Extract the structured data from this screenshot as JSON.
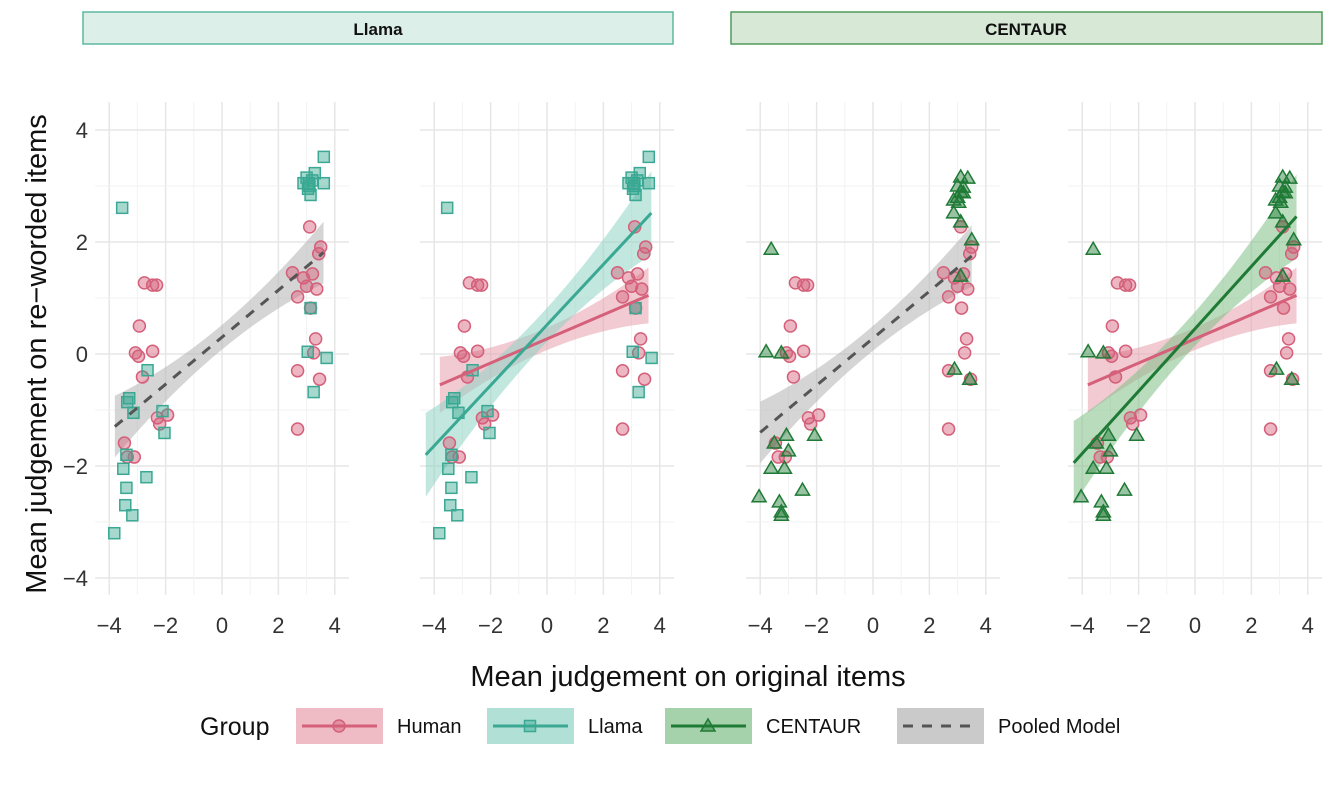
{
  "chart_data": {
    "type": "scatter",
    "xlabel": "Mean judgement on original items",
    "ylabel": "Mean judgement on re−worded items",
    "xlim": [
      -4.5,
      4.5
    ],
    "ylim": [
      -4.3,
      4.5
    ],
    "x_ticks": [
      "−4",
      "−2",
      "0",
      "2",
      "4"
    ],
    "y_ticks": [
      "−4",
      "−2",
      "0",
      "2",
      "4"
    ],
    "grid": true,
    "legend": {
      "title": "Group",
      "position": "bottom",
      "entries": [
        {
          "key": "human",
          "label": "Human",
          "color": "#d4607a",
          "marker": "circle",
          "line": "solid"
        },
        {
          "key": "llama",
          "label": "Llama",
          "color": "#3aa893",
          "marker": "square",
          "line": "solid"
        },
        {
          "key": "centaur",
          "label": "CENTAUR",
          "color": "#1f7a35",
          "marker": "triangle",
          "line": "solid"
        },
        {
          "key": "pooled",
          "label": "Pooled Model",
          "color": "#555555",
          "marker": "none",
          "line": "dashed"
        }
      ]
    },
    "strips": [
      {
        "label": "Llama",
        "fill": "#dcefe9",
        "border": "#5cb89f"
      },
      {
        "label": "CENTAUR",
        "fill": "#d7e8d7",
        "border": "#4f9a5b"
      }
    ],
    "series_points": {
      "human": [
        [
          -2.75,
          1.27
        ],
        [
          -2.46,
          1.23
        ],
        [
          -2.32,
          1.23
        ],
        [
          -2.93,
          0.5
        ],
        [
          -3.07,
          0.02
        ],
        [
          -2.96,
          -0.04
        ],
        [
          -2.46,
          0.05
        ],
        [
          -2.82,
          -0.41
        ],
        [
          -2.29,
          -1.14
        ],
        [
          -2.21,
          -1.25
        ],
        [
          -1.93,
          -1.09
        ],
        [
          -3.46,
          -1.59
        ],
        [
          -3.36,
          -1.84
        ],
        [
          -3.11,
          -1.84
        ],
        [
          3.11,
          2.27
        ],
        [
          3.5,
          1.91
        ],
        [
          3.43,
          1.79
        ],
        [
          2.5,
          1.45
        ],
        [
          3.21,
          1.43
        ],
        [
          2.89,
          1.36
        ],
        [
          3.0,
          1.21
        ],
        [
          3.36,
          1.16
        ],
        [
          2.68,
          1.02
        ],
        [
          3.14,
          0.82
        ],
        [
          3.32,
          0.27
        ],
        [
          3.25,
          0.02
        ],
        [
          2.68,
          -0.3
        ],
        [
          3.46,
          -0.45
        ],
        [
          2.68,
          -1.34
        ]
      ],
      "llama": [
        [
          3.61,
          3.52
        ],
        [
          3.29,
          3.23
        ],
        [
          2.89,
          3.05
        ],
        [
          3.08,
          3.05
        ],
        [
          3.61,
          3.05
        ],
        [
          3.14,
          2.84
        ],
        [
          3.0,
          3.15
        ],
        [
          3.1,
          3.0
        ],
        [
          3.2,
          3.1
        ],
        [
          3.05,
          2.95
        ],
        [
          -3.54,
          2.61
        ],
        [
          3.14,
          0.82
        ],
        [
          3.04,
          0.04
        ],
        [
          3.71,
          -0.07
        ],
        [
          3.25,
          -0.68
        ],
        [
          -2.64,
          -0.29
        ],
        [
          -3.29,
          -0.79
        ],
        [
          -3.36,
          -0.86
        ],
        [
          -3.14,
          -1.05
        ],
        [
          -2.11,
          -1.02
        ],
        [
          -2.04,
          -1.41
        ],
        [
          -3.39,
          -1.8
        ],
        [
          -3.5,
          -2.05
        ],
        [
          -2.68,
          -2.2
        ],
        [
          -3.39,
          -2.39
        ],
        [
          -3.43,
          -2.7
        ],
        [
          -3.18,
          -2.88
        ],
        [
          -3.82,
          -3.2
        ]
      ],
      "centaur": [
        [
          3.11,
          3.16
        ],
        [
          3.36,
          3.14
        ],
        [
          3.0,
          3.0
        ],
        [
          3.2,
          2.98
        ],
        [
          3.11,
          2.89
        ],
        [
          3.0,
          2.8
        ],
        [
          3.2,
          2.88
        ],
        [
          2.86,
          2.75
        ],
        [
          3.04,
          2.71
        ],
        [
          2.86,
          2.52
        ],
        [
          3.11,
          2.36
        ],
        [
          3.5,
          2.04
        ],
        [
          -3.61,
          1.87
        ],
        [
          3.11,
          1.39
        ],
        [
          -3.79,
          0.04
        ],
        [
          -3.25,
          0.02
        ],
        [
          2.89,
          -0.27
        ],
        [
          3.43,
          -0.45
        ],
        [
          -3.07,
          -1.45
        ],
        [
          -2.07,
          -1.45
        ],
        [
          -3.5,
          -1.59
        ],
        [
          -3.0,
          -1.73
        ],
        [
          -3.61,
          -2.04
        ],
        [
          -3.14,
          -2.04
        ],
        [
          -2.5,
          -2.43
        ],
        [
          -4.04,
          -2.55
        ],
        [
          -3.32,
          -2.64
        ],
        [
          -3.25,
          -2.82
        ],
        [
          -3.25,
          -2.88
        ]
      ]
    },
    "panels": [
      {
        "strip": 0,
        "points": [
          "human",
          "llama"
        ],
        "fits": [
          {
            "key": "pooled",
            "slope": 0.42,
            "intercept": 0.3,
            "x_range": [
              -3.8,
              3.6
            ],
            "ci_center": 0.22,
            "ci_edge": 0.55
          }
        ]
      },
      {
        "strip": 0,
        "points": [
          "human",
          "llama"
        ],
        "fits": [
          {
            "key": "human",
            "slope": 0.216,
            "intercept": 0.27,
            "x_range": [
              -3.8,
              3.6
            ],
            "ci_center": 0.2,
            "ci_edge": 0.5
          },
          {
            "key": "llama",
            "slope": 0.54,
            "intercept": 0.52,
            "x_range": [
              -4.3,
              3.7
            ],
            "ci_center": 0.3,
            "ci_edge": 0.75
          }
        ]
      },
      {
        "strip": 1,
        "points": [
          "human",
          "centaur"
        ],
        "fits": [
          {
            "key": "pooled",
            "slope": 0.42,
            "intercept": 0.28,
            "x_range": [
              -4.0,
              3.5
            ],
            "ci_center": 0.22,
            "ci_edge": 0.55
          }
        ]
      },
      {
        "strip": 1,
        "points": [
          "human",
          "centaur"
        ],
        "fits": [
          {
            "key": "human",
            "slope": 0.216,
            "intercept": 0.27,
            "x_range": [
              -3.8,
              3.6
            ],
            "ci_center": 0.2,
            "ci_edge": 0.5
          },
          {
            "key": "centaur",
            "slope": 0.557,
            "intercept": 0.45,
            "x_range": [
              -4.3,
              3.6
            ],
            "ci_center": 0.3,
            "ci_edge": 0.75
          }
        ]
      }
    ]
  }
}
